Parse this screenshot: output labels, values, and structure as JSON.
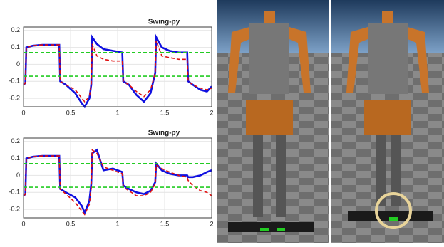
{
  "chart_data": [
    {
      "type": "line",
      "title": "Swing-py",
      "x": [
        0,
        0.02,
        0.03,
        0.1,
        0.2,
        0.38,
        0.39,
        0.45,
        0.55,
        0.62,
        0.65,
        0.7,
        0.72,
        0.73,
        0.78,
        0.85,
        0.95,
        1.05,
        1.06,
        1.12,
        1.2,
        1.28,
        1.35,
        1.4,
        1.41,
        1.47,
        1.55,
        1.65,
        1.74,
        1.75,
        1.8,
        1.88,
        1.95,
        2
      ],
      "series": [
        {
          "color": "#1010e0",
          "linestyle": "solid",
          "values": [
            -0.12,
            -0.11,
            0.1,
            0.11,
            0.115,
            0.115,
            -0.1,
            -0.12,
            -0.17,
            -0.23,
            -0.25,
            -0.2,
            -0.12,
            0.16,
            0.12,
            0.09,
            0.08,
            0.07,
            -0.1,
            -0.12,
            -0.18,
            -0.22,
            -0.17,
            -0.05,
            0.16,
            0.1,
            0.08,
            0.07,
            0.07,
            -0.1,
            -0.12,
            -0.15,
            -0.16,
            -0.13
          ]
        },
        {
          "color": "#e01010",
          "linestyle": "dashed",
          "values": [
            -0.12,
            -0.11,
            0.1,
            0.11,
            0.115,
            0.115,
            -0.1,
            -0.12,
            -0.15,
            -0.2,
            -0.22,
            -0.19,
            -0.12,
            0.12,
            0.05,
            0.03,
            0.02,
            0.02,
            -0.1,
            -0.12,
            -0.16,
            -0.19,
            -0.15,
            -0.05,
            0.14,
            0.05,
            0.04,
            0.03,
            0.03,
            -0.1,
            -0.12,
            -0.14,
            -0.15,
            -0.14
          ]
        },
        {
          "color": "#22cc22",
          "linestyle": "dashed",
          "values": [
            0.07,
            0.07,
            0.07,
            0.07,
            0.07,
            0.07,
            0.07,
            0.07,
            0.07,
            0.07,
            0.07,
            0.07,
            0.07,
            0.07,
            0.07,
            0.07,
            0.07,
            0.07,
            0.07,
            0.07,
            0.07,
            0.07,
            0.07,
            0.07,
            0.07,
            0.07,
            0.07,
            0.07,
            0.07,
            0.07,
            0.07,
            0.07,
            0.07,
            0.07
          ]
        },
        {
          "color": "#22cc22",
          "linestyle": "dashed",
          "values": [
            -0.07,
            -0.07,
            -0.07,
            -0.07,
            -0.07,
            -0.07,
            -0.07,
            -0.07,
            -0.07,
            -0.07,
            -0.07,
            -0.07,
            -0.07,
            -0.07,
            -0.07,
            -0.07,
            -0.07,
            -0.07,
            -0.07,
            -0.07,
            -0.07,
            -0.07,
            -0.07,
            -0.07,
            -0.07,
            -0.07,
            -0.07,
            -0.07,
            -0.07,
            -0.07,
            -0.07,
            -0.07,
            -0.07,
            -0.07
          ]
        }
      ],
      "xlim": [
        0,
        2
      ],
      "ylim": [
        -0.25,
        0.22
      ],
      "xticks": [
        0,
        0.5,
        1,
        1.5,
        2
      ],
      "yticks": [
        -0.2,
        -0.1,
        0,
        0.1,
        0.2
      ],
      "grid": true
    },
    {
      "type": "line",
      "title": "Swing-py",
      "x": [
        0,
        0.02,
        0.03,
        0.1,
        0.2,
        0.38,
        0.39,
        0.45,
        0.55,
        0.62,
        0.65,
        0.7,
        0.72,
        0.73,
        0.78,
        0.85,
        0.95,
        1.05,
        1.06,
        1.12,
        1.2,
        1.28,
        1.35,
        1.4,
        1.41,
        1.47,
        1.55,
        1.65,
        1.74,
        1.75,
        1.8,
        1.88,
        1.95,
        2
      ],
      "series": [
        {
          "color": "#1010e0",
          "linestyle": "solid",
          "values": [
            -0.12,
            -0.11,
            0.1,
            0.11,
            0.115,
            0.115,
            -0.08,
            -0.1,
            -0.13,
            -0.18,
            -0.22,
            -0.15,
            -0.05,
            0.13,
            0.15,
            0.03,
            0.04,
            0.02,
            -0.06,
            -0.08,
            -0.1,
            -0.11,
            -0.09,
            -0.04,
            0.07,
            0.03,
            0.01,
            0,
            0,
            -0.01,
            -0.01,
            0,
            0.02,
            0.03
          ]
        },
        {
          "color": "#e01010",
          "linestyle": "dashed",
          "values": [
            -0.12,
            -0.11,
            0.1,
            0.11,
            0.115,
            0.115,
            -0.08,
            -0.11,
            -0.16,
            -0.21,
            -0.23,
            -0.17,
            -0.07,
            0.15,
            0.13,
            0.05,
            0.03,
            0.01,
            -0.07,
            -0.09,
            -0.12,
            -0.12,
            -0.1,
            -0.05,
            0.06,
            0.04,
            0.02,
            0,
            -0.01,
            -0.03,
            -0.06,
            -0.09,
            -0.1,
            -0.12
          ]
        },
        {
          "color": "#22cc22",
          "linestyle": "dashed",
          "values": [
            0.07,
            0.07,
            0.07,
            0.07,
            0.07,
            0.07,
            0.07,
            0.07,
            0.07,
            0.07,
            0.07,
            0.07,
            0.07,
            0.07,
            0.07,
            0.07,
            0.07,
            0.07,
            0.07,
            0.07,
            0.07,
            0.07,
            0.07,
            0.07,
            0.07,
            0.07,
            0.07,
            0.07,
            0.07,
            0.07,
            0.07,
            0.07,
            0.07,
            0.07
          ]
        },
        {
          "color": "#22cc22",
          "linestyle": "dashed",
          "values": [
            -0.07,
            -0.07,
            -0.07,
            -0.07,
            -0.07,
            -0.07,
            -0.07,
            -0.07,
            -0.07,
            -0.07,
            -0.07,
            -0.07,
            -0.07,
            -0.07,
            -0.07,
            -0.07,
            -0.07,
            -0.07,
            -0.07,
            -0.07,
            -0.07,
            -0.07,
            -0.07,
            -0.07,
            -0.07,
            -0.07,
            -0.07,
            -0.07,
            -0.07,
            -0.07,
            -0.07,
            -0.07,
            -0.07,
            -0.07
          ]
        }
      ],
      "xlim": [
        0,
        2
      ],
      "ylim": [
        -0.25,
        0.22
      ],
      "xticks": [
        0,
        0.5,
        1,
        1.5,
        2
      ],
      "yticks": [
        -0.2,
        -0.1,
        0,
        0.1,
        0.2
      ],
      "grid": true
    }
  ]
}
